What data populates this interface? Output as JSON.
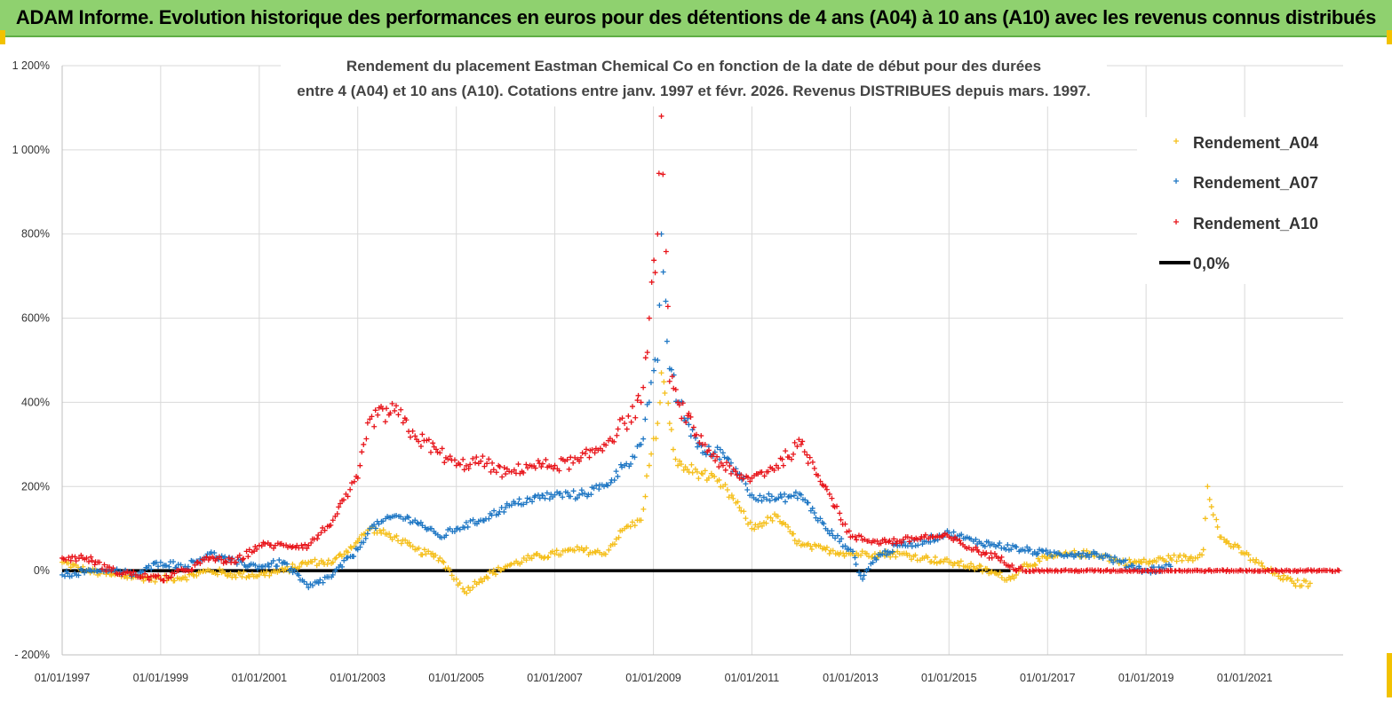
{
  "header": {
    "title": "ADAM Informe. Evolution historique des performances en euros pour des détentions de 4 ans (A04) à 10 ans (A10) avec les revenus connus distribués"
  },
  "colors": {
    "banner": "#8fd16f",
    "a04": "#f5bf1b",
    "a07": "#1f77c4",
    "a10": "#e8141a",
    "zero": "#000000"
  },
  "chart_data": {
    "type": "scatter",
    "title_lines": [
      "Rendement du placement Eastman Chemical Co en fonction de la date de début pour des durées",
      "entre 4 (A04) et 10 ans (A10).  Cotations entre janv. 1997 et févr. 2026. Revenus  DISTRIBUES depuis mars. 1997."
    ],
    "xlabel": "",
    "ylabel": "",
    "x_range": [
      "1997-01-01",
      "2023-01-01"
    ],
    "ylim": [
      -200,
      1200
    ],
    "y_ticks": [
      -200,
      0,
      200,
      400,
      600,
      800,
      1000,
      1200
    ],
    "y_tick_labels": [
      "- 200%",
      "0%",
      "200%",
      "400%",
      "600%",
      "800%",
      "1 000%",
      "1 200%"
    ],
    "x_ticks": [
      "1997-01-01",
      "1999-01-01",
      "2001-01-01",
      "2003-01-01",
      "2005-01-01",
      "2007-01-01",
      "2009-01-01",
      "2011-01-01",
      "2013-01-01",
      "2015-01-01",
      "2017-01-01",
      "2019-01-01",
      "2021-01-01"
    ],
    "x_tick_labels": [
      "01/01/1997",
      "01/01/1999",
      "01/01/2001",
      "01/01/2003",
      "01/01/2005",
      "01/01/2007",
      "01/01/2009",
      "01/01/2011",
      "01/01/2013",
      "01/01/2015",
      "01/01/2017",
      "01/01/2019",
      "01/01/2021"
    ],
    "grid": true,
    "legend_position": "top-right",
    "marker": "+",
    "series": [
      {
        "name": "Rendement_A04",
        "color": "#f5bf1b",
        "points": [
          [
            "1997-01",
            20
          ],
          [
            "1997-07",
            0
          ],
          [
            "1998-01",
            -10
          ],
          [
            "1998-07",
            -15
          ],
          [
            "1999-01",
            -20
          ],
          [
            "1999-07",
            -15
          ],
          [
            "2000-01",
            0
          ],
          [
            "2000-07",
            -10
          ],
          [
            "2001-01",
            -10
          ],
          [
            "2001-07",
            0
          ],
          [
            "2002-01",
            20
          ],
          [
            "2002-07",
            20
          ],
          [
            "2003-01",
            70
          ],
          [
            "2003-04",
            100
          ],
          [
            "2003-10",
            80
          ],
          [
            "2004-03",
            50
          ],
          [
            "2004-09",
            30
          ],
          [
            "2005-01",
            -20
          ],
          [
            "2005-03",
            -50
          ],
          [
            "2005-07",
            -20
          ],
          [
            "2006-01",
            10
          ],
          [
            "2006-07",
            30
          ],
          [
            "2007-01",
            40
          ],
          [
            "2007-07",
            50
          ],
          [
            "2008-01",
            40
          ],
          [
            "2008-06",
            100
          ],
          [
            "2008-10",
            120
          ],
          [
            "2008-12",
            250
          ],
          [
            "2009-02",
            350
          ],
          [
            "2009-03",
            470
          ],
          [
            "2009-05",
            350
          ],
          [
            "2009-07",
            250
          ],
          [
            "2010-01",
            230
          ],
          [
            "2010-06",
            200
          ],
          [
            "2010-10",
            150
          ],
          [
            "2011-01",
            100
          ],
          [
            "2011-07",
            130
          ],
          [
            "2012-01",
            60
          ],
          [
            "2012-07",
            50
          ],
          [
            "2013-01",
            40
          ],
          [
            "2013-07",
            40
          ],
          [
            "2014-01",
            40
          ],
          [
            "2014-07",
            30
          ],
          [
            "2015-01",
            20
          ],
          [
            "2015-07",
            10
          ],
          [
            "2016-01",
            -10
          ],
          [
            "2016-04",
            -20
          ],
          [
            "2016-07",
            10
          ],
          [
            "2017-01",
            30
          ],
          [
            "2017-07",
            40
          ],
          [
            "2018-01",
            40
          ],
          [
            "2018-07",
            20
          ],
          [
            "2019-01",
            20
          ],
          [
            "2019-07",
            30
          ],
          [
            "2020-01",
            30
          ],
          [
            "2020-03",
            50
          ],
          [
            "2020-04",
            200
          ],
          [
            "2020-07",
            80
          ],
          [
            "2021-01",
            40
          ],
          [
            "2021-07",
            0
          ],
          [
            "2022-01",
            -30
          ],
          [
            "2022-05",
            -30
          ]
        ]
      },
      {
        "name": "Rendement_A07",
        "color": "#1f77c4",
        "points": [
          [
            "1997-01",
            -10
          ],
          [
            "1997-07",
            0
          ],
          [
            "1998-01",
            0
          ],
          [
            "1998-07",
            -10
          ],
          [
            "1999-01",
            20
          ],
          [
            "1999-07",
            10
          ],
          [
            "2000-01",
            40
          ],
          [
            "2000-07",
            20
          ],
          [
            "2001-01",
            10
          ],
          [
            "2001-07",
            20
          ],
          [
            "2002-01",
            -40
          ],
          [
            "2002-07",
            -10
          ],
          [
            "2003-01",
            50
          ],
          [
            "2003-04",
            100
          ],
          [
            "2003-10",
            130
          ],
          [
            "2004-03",
            120
          ],
          [
            "2004-09",
            80
          ],
          [
            "2005-01",
            100
          ],
          [
            "2005-07",
            120
          ],
          [
            "2006-01",
            150
          ],
          [
            "2006-07",
            170
          ],
          [
            "2007-01",
            180
          ],
          [
            "2007-07",
            180
          ],
          [
            "2008-01",
            200
          ],
          [
            "2008-06",
            250
          ],
          [
            "2008-10",
            300
          ],
          [
            "2008-12",
            400
          ],
          [
            "2009-02",
            500
          ],
          [
            "2009-03",
            800
          ],
          [
            "2009-05",
            480
          ],
          [
            "2009-07",
            400
          ],
          [
            "2010-01",
            280
          ],
          [
            "2010-06",
            280
          ],
          [
            "2010-10",
            230
          ],
          [
            "2011-01",
            180
          ],
          [
            "2011-07",
            170
          ],
          [
            "2012-01",
            180
          ],
          [
            "2012-07",
            100
          ],
          [
            "2013-01",
            50
          ],
          [
            "2013-04",
            -20
          ],
          [
            "2013-07",
            30
          ],
          [
            "2014-01",
            60
          ],
          [
            "2014-07",
            70
          ],
          [
            "2015-01",
            90
          ],
          [
            "2015-07",
            70
          ],
          [
            "2016-01",
            60
          ],
          [
            "2016-07",
            50
          ],
          [
            "2017-01",
            40
          ],
          [
            "2017-07",
            40
          ],
          [
            "2018-01",
            40
          ],
          [
            "2018-07",
            20
          ],
          [
            "2019-01",
            0
          ],
          [
            "2019-07",
            10
          ]
        ]
      },
      {
        "name": "Rendement_A10",
        "color": "#e8141a",
        "points": [
          [
            "1997-01",
            30
          ],
          [
            "1997-07",
            30
          ],
          [
            "1998-01",
            0
          ],
          [
            "1998-07",
            -10
          ],
          [
            "1999-01",
            -20
          ],
          [
            "1999-07",
            0
          ],
          [
            "2000-01",
            30
          ],
          [
            "2000-07",
            20
          ],
          [
            "2001-01",
            60
          ],
          [
            "2001-07",
            60
          ],
          [
            "2002-01",
            60
          ],
          [
            "2002-07",
            120
          ],
          [
            "2003-01",
            220
          ],
          [
            "2003-04",
            360
          ],
          [
            "2003-10",
            380
          ],
          [
            "2004-03",
            320
          ],
          [
            "2004-09",
            280
          ],
          [
            "2005-01",
            250
          ],
          [
            "2005-07",
            260
          ],
          [
            "2006-01",
            230
          ],
          [
            "2006-07",
            250
          ],
          [
            "2007-01",
            250
          ],
          [
            "2007-07",
            260
          ],
          [
            "2008-01",
            300
          ],
          [
            "2008-06",
            350
          ],
          [
            "2008-10",
            400
          ],
          [
            "2008-12",
            600
          ],
          [
            "2009-02",
            800
          ],
          [
            "2009-03",
            1080
          ],
          [
            "2009-05",
            450
          ],
          [
            "2009-07",
            400
          ],
          [
            "2010-01",
            300
          ],
          [
            "2010-06",
            250
          ],
          [
            "2010-10",
            220
          ],
          [
            "2011-01",
            220
          ],
          [
            "2011-07",
            250
          ],
          [
            "2012-01",
            300
          ],
          [
            "2012-07",
            200
          ],
          [
            "2013-01",
            80
          ],
          [
            "2013-07",
            70
          ],
          [
            "2014-01",
            70
          ],
          [
            "2014-07",
            80
          ],
          [
            "2015-01",
            80
          ],
          [
            "2015-07",
            50
          ],
          [
            "2016-01",
            30
          ],
          [
            "2016-07",
            0
          ],
          [
            "2017-07",
            0
          ],
          [
            "2018-07",
            0
          ],
          [
            "2019-07",
            0
          ],
          [
            "2020-07",
            0
          ],
          [
            "2021-07",
            0
          ],
          [
            "2022-07",
            0
          ],
          [
            "2022-12",
            0
          ]
        ]
      },
      {
        "name": "0,0%",
        "color": "#000000",
        "type": "line",
        "points": [
          [
            "1997-01",
            0
          ],
          [
            "2016-04",
            0
          ]
        ]
      }
    ]
  }
}
